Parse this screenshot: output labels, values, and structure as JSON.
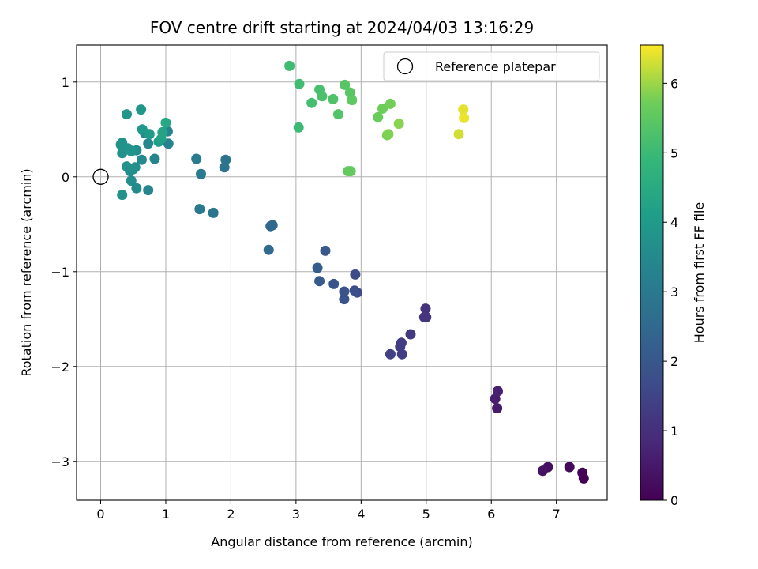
{
  "chart_data": {
    "type": "scatter",
    "title": "FOV centre drift starting at 2024/04/03 13:16:29",
    "xlabel": "Angular distance from reference (arcmin)",
    "ylabel": "Rotation from reference (arcmin)",
    "xlim": [
      -0.37,
      7.78
    ],
    "ylim": [
      -3.41,
      1.39
    ],
    "xticks": [
      0,
      1,
      2,
      3,
      4,
      5,
      6,
      7
    ],
    "yticks": [
      -3,
      -2,
      -1,
      0,
      1
    ],
    "grid": true,
    "legend_placement": "top-right",
    "reference": {
      "label": "Reference platepar",
      "x": 0,
      "y": 0
    },
    "colorbar": {
      "label": "Hours from first FF file",
      "range": [
        0,
        6.55
      ],
      "ticks": [
        0,
        1,
        2,
        3,
        4,
        5,
        6
      ],
      "colormap": "viridis"
    },
    "points": [
      {
        "x": 7.42,
        "y": -3.18,
        "c": 0.0
      },
      {
        "x": 7.4,
        "y": -3.12,
        "c": 0.05
      },
      {
        "x": 7.2,
        "y": -3.06,
        "c": 0.15
      },
      {
        "x": 6.87,
        "y": -3.06,
        "c": 0.3
      },
      {
        "x": 6.79,
        "y": -3.1,
        "c": 0.35
      },
      {
        "x": 6.09,
        "y": -2.44,
        "c": 0.55
      },
      {
        "x": 6.06,
        "y": -2.34,
        "c": 0.6
      },
      {
        "x": 6.1,
        "y": -2.26,
        "c": 0.65
      },
      {
        "x": 4.99,
        "y": -1.39,
        "c": 1.05
      },
      {
        "x": 5.0,
        "y": -1.48,
        "c": 1.1
      },
      {
        "x": 4.97,
        "y": -1.48,
        "c": 1.12
      },
      {
        "x": 4.76,
        "y": -1.66,
        "c": 1.25
      },
      {
        "x": 4.62,
        "y": -1.75,
        "c": 1.3
      },
      {
        "x": 4.6,
        "y": -1.79,
        "c": 1.33
      },
      {
        "x": 4.63,
        "y": -1.87,
        "c": 1.36
      },
      {
        "x": 4.45,
        "y": -1.87,
        "c": 1.42
      },
      {
        "x": 3.91,
        "y": -1.03,
        "c": 1.7
      },
      {
        "x": 3.94,
        "y": -1.22,
        "c": 1.74
      },
      {
        "x": 3.9,
        "y": -1.2,
        "c": 1.78
      },
      {
        "x": 3.74,
        "y": -1.21,
        "c": 1.85
      },
      {
        "x": 3.74,
        "y": -1.29,
        "c": 1.88
      },
      {
        "x": 3.58,
        "y": -1.13,
        "c": 1.95
      },
      {
        "x": 3.45,
        "y": -0.78,
        "c": 2.02
      },
      {
        "x": 3.36,
        "y": -1.1,
        "c": 2.08
      },
      {
        "x": 3.33,
        "y": -0.96,
        "c": 2.12
      },
      {
        "x": 2.64,
        "y": -0.51,
        "c": 2.45
      },
      {
        "x": 2.61,
        "y": -0.52,
        "c": 2.48
      },
      {
        "x": 2.58,
        "y": -0.77,
        "c": 2.55
      },
      {
        "x": 1.92,
        "y": 0.18,
        "c": 2.8
      },
      {
        "x": 1.9,
        "y": 0.1,
        "c": 2.83
      },
      {
        "x": 1.73,
        "y": -0.38,
        "c": 2.9
      },
      {
        "x": 1.52,
        "y": -0.34,
        "c": 2.97
      },
      {
        "x": 1.54,
        "y": 0.03,
        "c": 3.02
      },
      {
        "x": 1.47,
        "y": 0.19,
        "c": 3.06
      },
      {
        "x": 1.04,
        "y": 0.35,
        "c": 3.28
      },
      {
        "x": 1.03,
        "y": 0.48,
        "c": 3.3
      },
      {
        "x": 0.83,
        "y": 0.19,
        "c": 3.36
      },
      {
        "x": 0.73,
        "y": -0.14,
        "c": 3.4
      },
      {
        "x": 0.73,
        "y": 0.35,
        "c": 3.44
      },
      {
        "x": 0.68,
        "y": 0.46,
        "c": 3.47
      },
      {
        "x": 0.63,
        "y": 0.18,
        "c": 3.5
      },
      {
        "x": 0.55,
        "y": -0.12,
        "c": 3.54
      },
      {
        "x": 0.53,
        "y": 0.1,
        "c": 3.57
      },
      {
        "x": 0.55,
        "y": 0.28,
        "c": 3.6
      },
      {
        "x": 0.47,
        "y": -0.04,
        "c": 3.64
      },
      {
        "x": 0.45,
        "y": 0.06,
        "c": 3.66
      },
      {
        "x": 0.5,
        "y": 0.08,
        "c": 3.68
      },
      {
        "x": 0.4,
        "y": 0.11,
        "c": 3.7
      },
      {
        "x": 0.33,
        "y": 0.25,
        "c": 3.72
      },
      {
        "x": 0.33,
        "y": -0.19,
        "c": 3.74
      },
      {
        "x": 0.31,
        "y": 0.34,
        "c": 3.76
      },
      {
        "x": 0.33,
        "y": 0.36,
        "c": 3.78
      },
      {
        "x": 0.42,
        "y": 0.3,
        "c": 3.8
      },
      {
        "x": 0.47,
        "y": 0.27,
        "c": 3.82
      },
      {
        "x": 0.4,
        "y": 0.66,
        "c": 3.84
      },
      {
        "x": 0.62,
        "y": 0.71,
        "c": 3.9
      },
      {
        "x": 0.64,
        "y": 0.5,
        "c": 3.95
      },
      {
        "x": 0.75,
        "y": 0.45,
        "c": 4.0
      },
      {
        "x": 0.89,
        "y": 0.37,
        "c": 4.1
      },
      {
        "x": 0.93,
        "y": 0.4,
        "c": 4.2
      },
      {
        "x": 0.95,
        "y": 0.47,
        "c": 4.3
      },
      {
        "x": 1.0,
        "y": 0.57,
        "c": 4.4
      },
      {
        "x": 3.04,
        "y": 0.52,
        "c": 5.0
      },
      {
        "x": 2.9,
        "y": 1.17,
        "c": 5.05
      },
      {
        "x": 3.05,
        "y": 0.98,
        "c": 5.1
      },
      {
        "x": 3.24,
        "y": 0.78,
        "c": 5.15
      },
      {
        "x": 3.36,
        "y": 0.92,
        "c": 5.2
      },
      {
        "x": 3.4,
        "y": 0.85,
        "c": 5.25
      },
      {
        "x": 3.57,
        "y": 0.82,
        "c": 5.3
      },
      {
        "x": 3.65,
        "y": 0.66,
        "c": 5.35
      },
      {
        "x": 3.75,
        "y": 0.97,
        "c": 5.4
      },
      {
        "x": 3.83,
        "y": 0.89,
        "c": 5.45
      },
      {
        "x": 3.86,
        "y": 0.81,
        "c": 5.5
      },
      {
        "x": 3.8,
        "y": 0.06,
        "c": 5.55
      },
      {
        "x": 3.84,
        "y": 0.06,
        "c": 5.58
      },
      {
        "x": 4.26,
        "y": 0.63,
        "c": 5.65
      },
      {
        "x": 4.33,
        "y": 0.72,
        "c": 5.7
      },
      {
        "x": 4.45,
        "y": 0.77,
        "c": 5.75
      },
      {
        "x": 4.4,
        "y": 0.44,
        "c": 5.8
      },
      {
        "x": 4.42,
        "y": 0.45,
        "c": 5.83
      },
      {
        "x": 4.58,
        "y": 0.56,
        "c": 5.88
      },
      {
        "x": 5.5,
        "y": 0.45,
        "c": 6.3
      },
      {
        "x": 5.57,
        "y": 0.71,
        "c": 6.4
      },
      {
        "x": 5.58,
        "y": 0.62,
        "c": 6.45
      }
    ]
  }
}
